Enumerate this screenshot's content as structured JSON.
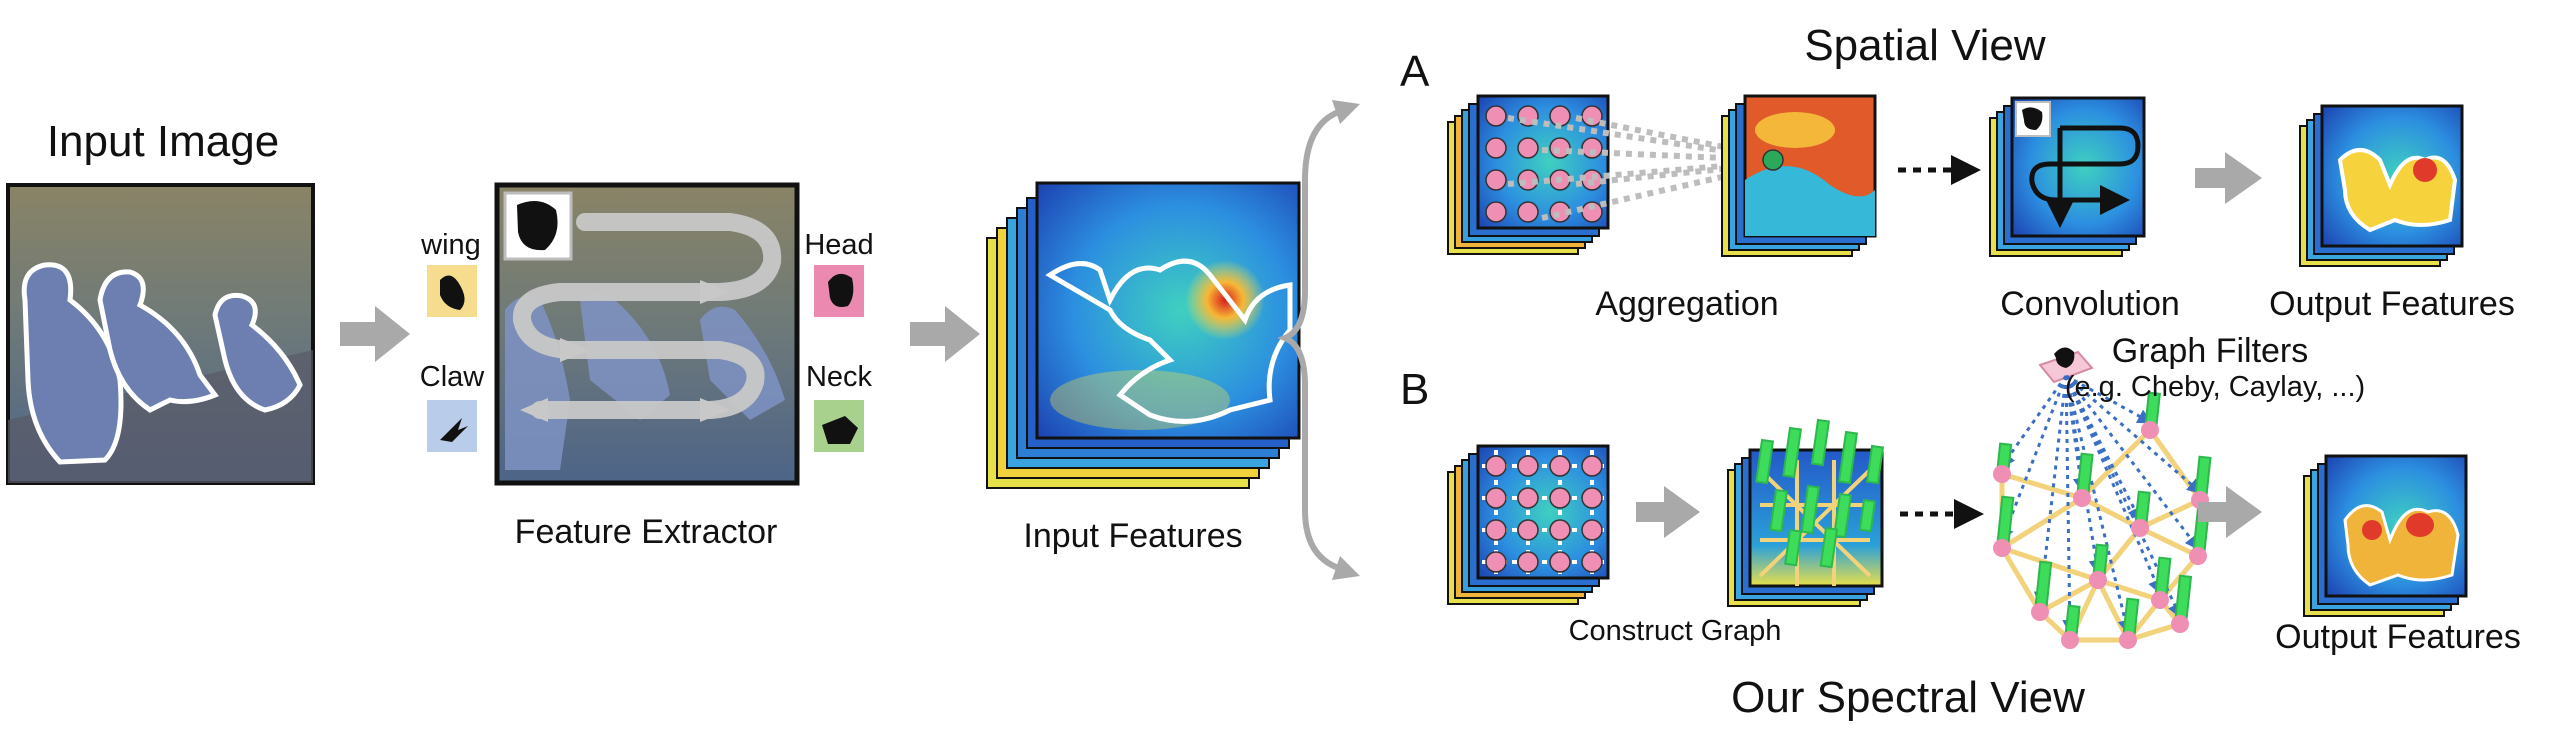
{
  "input_image": {
    "title": "Input Image"
  },
  "feature_extractor": {
    "caption": "Feature Extractor",
    "parts": [
      {
        "label": "wing",
        "color": "#f6dc8e"
      },
      {
        "label": "Claw",
        "color": "#b9cdea"
      },
      {
        "label": "Head",
        "color": "#ec89b0"
      },
      {
        "label": "Neck",
        "color": "#a9d18e"
      }
    ]
  },
  "input_features": {
    "caption": "Input Features"
  },
  "spatial_view": {
    "panel_letter": "A",
    "title": "Spatial View",
    "steps": [
      "Aggregation",
      "Convolution",
      "Output Features"
    ]
  },
  "spectral_view": {
    "panel_letter": "B",
    "title": "Our Spectral View",
    "construct_label": "Construct Graph",
    "filters_title": "Graph Filters",
    "filters_subtitle": "(e.g. Cheby, Caylay, ...)",
    "output_label": "Output Features"
  },
  "colors": {
    "arrow_gray": "#a9a9a9",
    "node_pink": "#ee8fb3",
    "bar_green": "#3ddc5a",
    "edge_yellow": "#f2d27a",
    "edge_blue": "#3a6fc4"
  }
}
